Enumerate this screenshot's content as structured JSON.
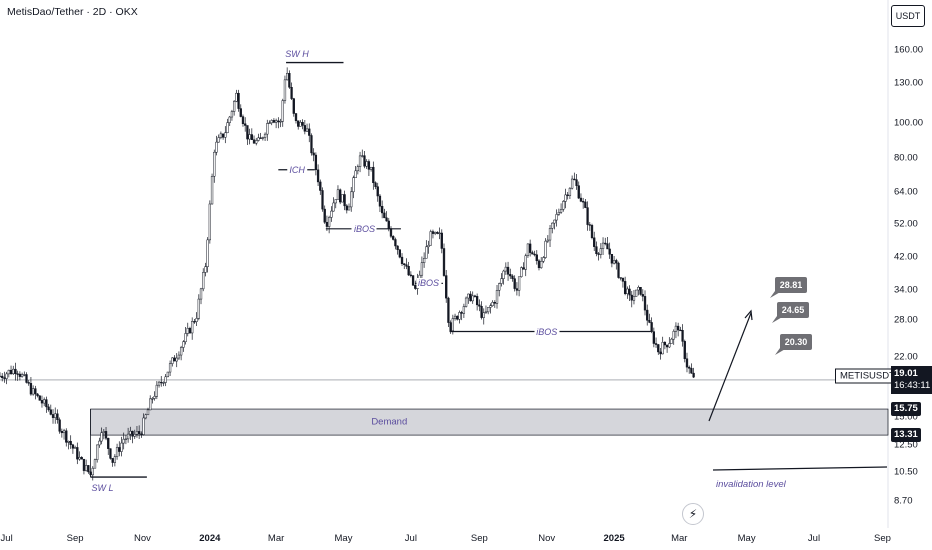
{
  "header": {
    "title": "MetisDao/Tether · 2D · OKX",
    "currency_button": "USDT"
  },
  "colors": {
    "candle": "#131722",
    "zone_fill": "#b2b5be",
    "annotation": "#5b4d9e",
    "target_box": "#6f6f74",
    "current_price_line": "#787b86"
  },
  "chart_data": {
    "type": "candlestick",
    "title": "MetisDao/Tether · 2D · OKX",
    "symbol": "METISUSDT",
    "last_price": "19.01",
    "countdown": "16:43:11",
    "y_scale": "log",
    "ylim": [
      7.3,
      185
    ],
    "y_ticks": [
      "160.00",
      "130.00",
      "100.00",
      "80.00",
      "64.00",
      "52.00",
      "42.00",
      "34.00",
      "28.00",
      "22.00",
      "15.00",
      "12.50",
      "10.50",
      "8.70"
    ],
    "y_tick_values": [
      160,
      130,
      100,
      80,
      64,
      52,
      42,
      34,
      28,
      22,
      15,
      12.5,
      10.5,
      8.7
    ],
    "x_ticks": [
      {
        "label": "Jul",
        "date": "2023-07-01"
      },
      {
        "label": "Sep",
        "date": "2023-09-01"
      },
      {
        "label": "Nov",
        "date": "2023-11-01"
      },
      {
        "label": "2024",
        "date": "2024-01-01",
        "bold": true
      },
      {
        "label": "Mar",
        "date": "2024-03-01"
      },
      {
        "label": "May",
        "date": "2024-05-01"
      },
      {
        "label": "Jul",
        "date": "2024-07-01"
      },
      {
        "label": "Sep",
        "date": "2024-09-01"
      },
      {
        "label": "Nov",
        "date": "2024-11-01"
      },
      {
        "label": "2025",
        "date": "2025-01-01",
        "bold": true
      },
      {
        "label": "Mar",
        "date": "2025-03-01"
      },
      {
        "label": "May",
        "date": "2025-05-01"
      },
      {
        "label": "Jul",
        "date": "2025-07-01"
      },
      {
        "label": "Sep",
        "date": "2025-09-01"
      }
    ],
    "x_range": [
      "2023-06-25",
      "2025-09-06"
    ],
    "price_path": [
      [
        "2023-06-25",
        19.5
      ],
      [
        "2023-07-10",
        20.5
      ],
      [
        "2023-07-25",
        17.5
      ],
      [
        "2023-08-10",
        15.5
      ],
      [
        "2023-08-25",
        13.0
      ],
      [
        "2023-09-08",
        11.0
      ],
      [
        "2023-09-15",
        10.3
      ],
      [
        "2023-09-25",
        14.0
      ],
      [
        "2023-10-05",
        11.3
      ],
      [
        "2023-10-15",
        13.0
      ],
      [
        "2023-10-30",
        13.5
      ],
      [
        "2023-11-10",
        17.0
      ],
      [
        "2023-11-25",
        20.5
      ],
      [
        "2023-12-10",
        25.0
      ],
      [
        "2023-12-20",
        29.0
      ],
      [
        "2023-12-28",
        40.0
      ],
      [
        "2024-01-05",
        85.0
      ],
      [
        "2024-01-15",
        95.0
      ],
      [
        "2024-01-25",
        120.0
      ],
      [
        "2024-02-05",
        90.0
      ],
      [
        "2024-02-15",
        88.0
      ],
      [
        "2024-02-25",
        105.0
      ],
      [
        "2024-03-05",
        100.0
      ],
      [
        "2024-03-10",
        145.0
      ],
      [
        "2024-03-18",
        100.0
      ],
      [
        "2024-03-28",
        98.0
      ],
      [
        "2024-04-08",
        70.0
      ],
      [
        "2024-04-15",
        52.0
      ],
      [
        "2024-04-25",
        64.0
      ],
      [
        "2024-05-05",
        58.0
      ],
      [
        "2024-05-15",
        80.0
      ],
      [
        "2024-05-25",
        75.0
      ],
      [
        "2024-06-05",
        55.0
      ],
      [
        "2024-06-15",
        48.0
      ],
      [
        "2024-06-25",
        40.0
      ],
      [
        "2024-07-05",
        34.0
      ],
      [
        "2024-07-18",
        48.0
      ],
      [
        "2024-07-28",
        48.0
      ],
      [
        "2024-08-05",
        26.5
      ],
      [
        "2024-08-15",
        30.0
      ],
      [
        "2024-08-25",
        33.0
      ],
      [
        "2024-09-05",
        28.5
      ],
      [
        "2024-09-15",
        32.0
      ],
      [
        "2024-09-25",
        40.0
      ],
      [
        "2024-10-05",
        34.0
      ],
      [
        "2024-10-15",
        45.0
      ],
      [
        "2024-10-25",
        40.0
      ],
      [
        "2024-11-05",
        50.0
      ],
      [
        "2024-11-15",
        60.0
      ],
      [
        "2024-11-25",
        70.0
      ],
      [
        "2024-12-05",
        58.0
      ],
      [
        "2024-12-15",
        44.0
      ],
      [
        "2024-12-25",
        45.0
      ],
      [
        "2025-01-05",
        38.0
      ],
      [
        "2025-01-15",
        32.0
      ],
      [
        "2025-01-25",
        34.0
      ],
      [
        "2025-02-03",
        26.0
      ],
      [
        "2025-02-10",
        23.0
      ],
      [
        "2025-02-20",
        24.5
      ],
      [
        "2025-02-28",
        27.0
      ],
      [
        "2025-03-08",
        21.0
      ],
      [
        "2025-03-14",
        19.0
      ]
    ],
    "annotations": {
      "swing_high": {
        "label": "SW H",
        "date": "2024-03-10",
        "price": 148
      },
      "swing_low": {
        "label": "SW L",
        "date": "2023-09-15",
        "price": 10.15
      },
      "ich": {
        "label": "ICH",
        "price": 74
      },
      "ibos": [
        {
          "label": "iBOS",
          "price": 50.5
        },
        {
          "label": "iBOS",
          "price": 35.5
        },
        {
          "label": "iBOS",
          "price": 26.0
        }
      ],
      "demand_zone": {
        "label": "Demand",
        "low": 13.31,
        "high": 15.75
      },
      "invalidation": {
        "label": "invalidation level",
        "price": 10.55
      },
      "targets": [
        {
          "label": "28.81",
          "value": 28.81
        },
        {
          "label": "24.65",
          "value": 24.65
        },
        {
          "label": "20.30",
          "value": 20.3
        }
      ],
      "zone_tags": [
        "15.75",
        "13.31"
      ]
    }
  }
}
